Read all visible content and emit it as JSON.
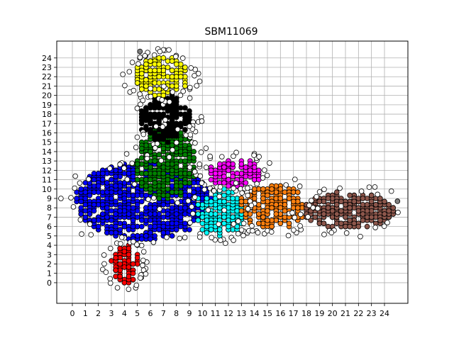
{
  "chart_data": {
    "type": "scatter",
    "title": "SBM11069",
    "xlabel": "",
    "ylabel": "",
    "xlim": [
      -1.2,
      25.8
    ],
    "ylim": [
      -2.2,
      25.8
    ],
    "grid": true,
    "x_ticks": [
      "0",
      "1",
      "2",
      "3",
      "4",
      "5",
      "6",
      "7",
      "8",
      "9",
      "10",
      "11",
      "12",
      "13",
      "14",
      "15",
      "16",
      "17",
      "18",
      "19",
      "20",
      "21",
      "22",
      "23",
      "24"
    ],
    "y_ticks": [
      "0",
      "1",
      "2",
      "3",
      "4",
      "5",
      "6",
      "7",
      "8",
      "9",
      "10",
      "11",
      "12",
      "13",
      "14",
      "15",
      "16",
      "17",
      "18",
      "19",
      "20",
      "21",
      "22",
      "23",
      "24"
    ],
    "marker_edge_color": "#000000",
    "regions": [
      {
        "color": "#0000ff",
        "label": "blue",
        "x_range": [
          0.3,
          10.6
        ],
        "y_range": [
          4.6,
          12.9
        ]
      },
      {
        "color": "#ff0000",
        "label": "red",
        "x_range": [
          3.0,
          5.0
        ],
        "y_range": [
          0.0,
          4.0
        ]
      },
      {
        "color": "#008000",
        "label": "green",
        "x_range": [
          4.8,
          9.5
        ],
        "y_range": [
          9.0,
          16.5
        ]
      },
      {
        "color": "#000000",
        "label": "black",
        "x_range": [
          5.2,
          9.0
        ],
        "y_range": [
          15.0,
          20.0
        ]
      },
      {
        "color": "#ffff00",
        "label": "yellow",
        "x_range": [
          4.8,
          9.0
        ],
        "y_range": [
          20.0,
          24.0
        ]
      },
      {
        "color": "#00ffff",
        "label": "cyan",
        "x_range": [
          9.5,
          13.2
        ],
        "y_range": [
          5.0,
          10.0
        ]
      },
      {
        "color": "#ff00ff",
        "label": "magenta",
        "x_range": [
          10.5,
          14.5
        ],
        "y_range": [
          10.3,
          13.2
        ]
      },
      {
        "color": "#ff7f0e",
        "label": "orange",
        "x_range": [
          12.8,
          18.0
        ],
        "y_range": [
          5.8,
          10.4
        ]
      },
      {
        "color": "#8c564b",
        "label": "brown",
        "x_range": [
          17.8,
          24.8
        ],
        "y_range": [
          5.8,
          9.6
        ]
      },
      {
        "color": "#ffffff",
        "label": "white",
        "x_range": [
          -0.3,
          25.0
        ],
        "y_range": [
          2.0,
          24.7
        ]
      }
    ],
    "outliers": [
      {
        "x": 5.2,
        "y": 24.7,
        "color": "#808080"
      },
      {
        "x": 25.0,
        "y": 8.7,
        "color": "#808080"
      }
    ]
  }
}
